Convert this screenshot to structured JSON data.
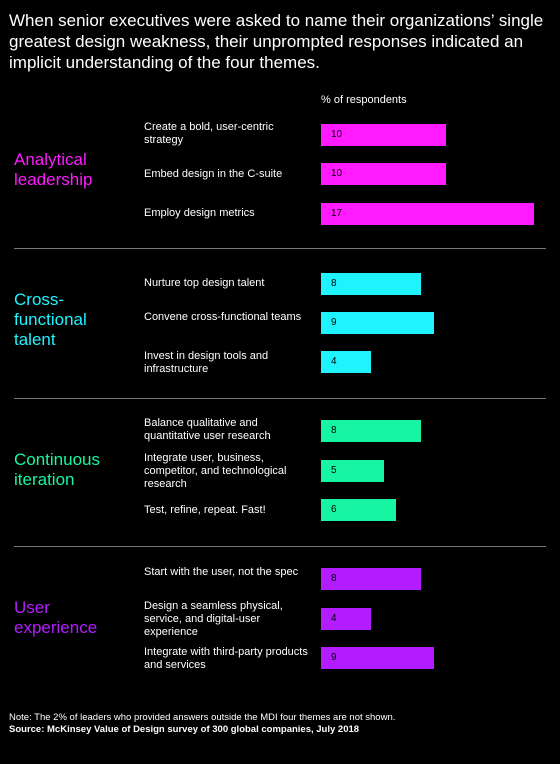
{
  "title": "When senior executives were asked to name their organizations’ single greatest design weakness, their unprompted responses indicated an implicit understanding of the four themes.",
  "column_header": "% of respondents",
  "note": "Note: The 2% of leaders who provided answers outside the MDI four themes are not shown.",
  "source": "Source: McKinsey Value of Design survey of 300 global companies, July 2018",
  "chart_data": {
    "type": "bar",
    "orientation": "horizontal",
    "value_label": "% of respondents",
    "groups": [
      {
        "name": "Analytical leadership",
        "color": "#ff1aff",
        "items": [
          {
            "label": "Create a bold, user-centric strategy",
            "value": 10
          },
          {
            "label": "Embed design in the C-suite",
            "value": 10
          },
          {
            "label": "Employ design metrics",
            "value": 17
          }
        ]
      },
      {
        "name": "Cross-functional talent",
        "color": "#1ff3ff",
        "items": [
          {
            "label": "Nurture top design talent",
            "value": 8
          },
          {
            "label": "Convene cross-functional teams",
            "value": 9
          },
          {
            "label": "Invest in design tools and infrastructure",
            "value": 4
          }
        ]
      },
      {
        "name": "Continuous iteration",
        "color": "#18f5a2",
        "items": [
          {
            "label": "Balance qualitative and quantitative user research",
            "value": 8
          },
          {
            "label": "Integrate user, business, competitor, and technological research",
            "value": 5
          },
          {
            "label": "Test, refine, repeat. Fast!",
            "value": 6
          }
        ]
      },
      {
        "name": "User experience",
        "color": "#b31cff",
        "items": [
          {
            "label": "Start with the user, not the spec",
            "value": 8
          },
          {
            "label": "Design a seamless physical, service, and digital-user experience",
            "value": 4
          },
          {
            "label": "Integrate with third-party products and services",
            "value": 9
          }
        ]
      }
    ]
  }
}
